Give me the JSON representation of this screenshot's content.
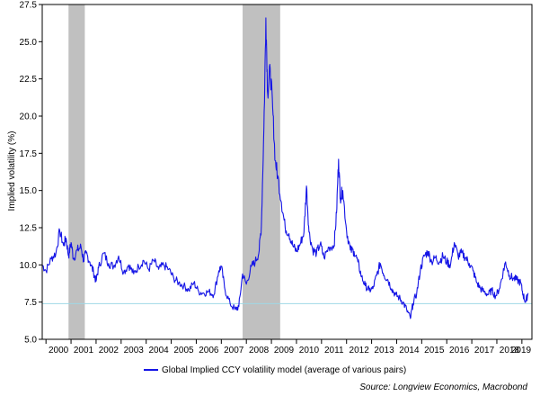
{
  "chart_data": {
    "type": "line",
    "title": "",
    "ylabel": "Implied volatility (%)",
    "xlabel": "",
    "xlim": [
      1999.85,
      2019.4
    ],
    "ylim": [
      5.0,
      27.5
    ],
    "yticks": [
      "5.0",
      "7.5",
      "10.0",
      "12.5",
      "15.0",
      "17.5",
      "20.0",
      "22.5",
      "25.0",
      "27.5"
    ],
    "year_labels": [
      "2000",
      "2001",
      "2002",
      "2003",
      "2004",
      "2005",
      "2006",
      "2007",
      "2008",
      "2009",
      "2010",
      "2011",
      "2012",
      "2013",
      "2014",
      "2015",
      "2016",
      "2017",
      "2018",
      "2019"
    ],
    "grid": false,
    "legend_position": "bottom",
    "recession_bands": [
      [
        2000.9,
        2001.55
      ],
      [
        2007.85,
        2009.35
      ]
    ],
    "reference_line": {
      "y": 7.4
    },
    "series": [
      {
        "name": "Global Implied CCY volatility  model (average of various pairs)",
        "color": "#1515e6",
        "points": [
          [
            1999.85,
            10.0
          ],
          [
            2000.0,
            9.6
          ],
          [
            2000.2,
            10.4
          ],
          [
            2000.4,
            10.8
          ],
          [
            2000.55,
            12.3
          ],
          [
            2000.7,
            11.3
          ],
          [
            2000.8,
            11.8
          ],
          [
            2000.9,
            10.6
          ],
          [
            2001.0,
            11.5
          ],
          [
            2001.1,
            10.4
          ],
          [
            2001.25,
            11.0
          ],
          [
            2001.4,
            11.2
          ],
          [
            2001.5,
            10.3
          ],
          [
            2001.6,
            10.8
          ],
          [
            2001.75,
            10.2
          ],
          [
            2001.9,
            9.5
          ],
          [
            2002.0,
            8.9
          ],
          [
            2002.1,
            9.8
          ],
          [
            2002.3,
            10.8
          ],
          [
            2002.5,
            10.1
          ],
          [
            2002.7,
            9.9
          ],
          [
            2002.9,
            10.6
          ],
          [
            2003.1,
            9.5
          ],
          [
            2003.3,
            10.0
          ],
          [
            2003.5,
            9.4
          ],
          [
            2003.7,
            9.9
          ],
          [
            2003.9,
            10.3
          ],
          [
            2004.1,
            9.7
          ],
          [
            2004.3,
            10.3
          ],
          [
            2004.5,
            9.7
          ],
          [
            2004.7,
            10.0
          ],
          [
            2004.9,
            9.7
          ],
          [
            2005.1,
            9.1
          ],
          [
            2005.3,
            8.8
          ],
          [
            2005.5,
            8.6
          ],
          [
            2005.7,
            8.3
          ],
          [
            2005.9,
            8.8
          ],
          [
            2006.1,
            8.2
          ],
          [
            2006.3,
            8.1
          ],
          [
            2006.5,
            8.2
          ],
          [
            2006.7,
            8.0
          ],
          [
            2006.9,
            9.6
          ],
          [
            2007.0,
            9.9
          ],
          [
            2007.15,
            8.3
          ],
          [
            2007.35,
            7.4
          ],
          [
            2007.55,
            7.0
          ],
          [
            2007.7,
            7.2
          ],
          [
            2007.85,
            9.4
          ],
          [
            2008.0,
            8.7
          ],
          [
            2008.2,
            9.9
          ],
          [
            2008.35,
            10.2
          ],
          [
            2008.5,
            10.8
          ],
          [
            2008.6,
            12.6
          ],
          [
            2008.7,
            19.2
          ],
          [
            2008.78,
            26.6
          ],
          [
            2008.85,
            21.5
          ],
          [
            2008.95,
            23.2
          ],
          [
            2009.05,
            20.5
          ],
          [
            2009.15,
            17.0
          ],
          [
            2009.25,
            16.0
          ],
          [
            2009.4,
            14.2
          ],
          [
            2009.55,
            12.5
          ],
          [
            2009.7,
            12.1
          ],
          [
            2009.85,
            11.3
          ],
          [
            2010.0,
            10.9
          ],
          [
            2010.15,
            11.4
          ],
          [
            2010.3,
            12.2
          ],
          [
            2010.4,
            15.3
          ],
          [
            2010.5,
            12.2
          ],
          [
            2010.65,
            11.0
          ],
          [
            2010.8,
            10.8
          ],
          [
            2010.95,
            11.4
          ],
          [
            2011.1,
            10.5
          ],
          [
            2011.3,
            11.2
          ],
          [
            2011.5,
            11.3
          ],
          [
            2011.6,
            13.5
          ],
          [
            2011.68,
            17.1
          ],
          [
            2011.75,
            14.5
          ],
          [
            2011.85,
            15.0
          ],
          [
            2012.0,
            12.3
          ],
          [
            2012.15,
            11.0
          ],
          [
            2012.3,
            10.9
          ],
          [
            2012.45,
            10.2
          ],
          [
            2012.6,
            9.2
          ],
          [
            2012.75,
            8.6
          ],
          [
            2012.9,
            8.3
          ],
          [
            2013.05,
            8.4
          ],
          [
            2013.2,
            9.3
          ],
          [
            2013.35,
            10.1
          ],
          [
            2013.5,
            9.3
          ],
          [
            2013.65,
            9.0
          ],
          [
            2013.8,
            8.4
          ],
          [
            2013.95,
            8.0
          ],
          [
            2014.1,
            7.8
          ],
          [
            2014.25,
            7.5
          ],
          [
            2014.4,
            7.0
          ],
          [
            2014.55,
            6.4
          ],
          [
            2014.65,
            7.4
          ],
          [
            2014.8,
            8.1
          ],
          [
            2014.95,
            9.7
          ],
          [
            2015.1,
            10.6
          ],
          [
            2015.25,
            10.9
          ],
          [
            2015.4,
            10.2
          ],
          [
            2015.55,
            10.5
          ],
          [
            2015.7,
            10.2
          ],
          [
            2015.85,
            10.6
          ],
          [
            2016.0,
            10.2
          ],
          [
            2016.15,
            10.0
          ],
          [
            2016.3,
            11.5
          ],
          [
            2016.45,
            10.6
          ],
          [
            2016.6,
            10.8
          ],
          [
            2016.75,
            10.5
          ],
          [
            2016.9,
            10.1
          ],
          [
            2017.05,
            9.6
          ],
          [
            2017.2,
            8.8
          ],
          [
            2017.35,
            8.4
          ],
          [
            2017.5,
            8.2
          ],
          [
            2017.65,
            8.0
          ],
          [
            2017.8,
            8.3
          ],
          [
            2017.95,
            7.9
          ],
          [
            2018.1,
            8.4
          ],
          [
            2018.25,
            9.5
          ],
          [
            2018.35,
            10.2
          ],
          [
            2018.5,
            9.3
          ],
          [
            2018.65,
            9.1
          ],
          [
            2018.8,
            9.0
          ],
          [
            2018.95,
            8.8
          ],
          [
            2019.05,
            8.0
          ],
          [
            2019.15,
            7.5
          ],
          [
            2019.25,
            8.1
          ]
        ]
      }
    ],
    "source": "Source: Longview Economics, Macrobond"
  }
}
